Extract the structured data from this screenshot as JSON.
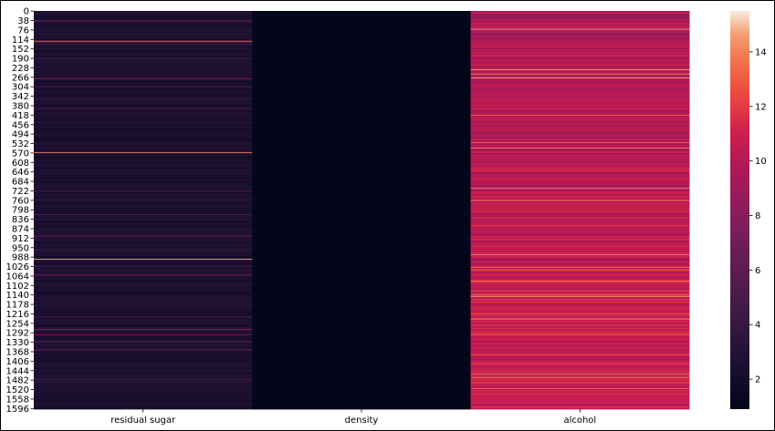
{
  "chart_data": {
    "type": "heatmap",
    "columns": [
      "residual sugar",
      "density",
      "alcohol"
    ],
    "y_tick_labels": [
      "0",
      "38",
      "76",
      "114",
      "152",
      "190",
      "228",
      "266",
      "304",
      "342",
      "380",
      "418",
      "456",
      "494",
      "532",
      "570",
      "608",
      "646",
      "684",
      "722",
      "760",
      "798",
      "836",
      "874",
      "912",
      "950",
      "988",
      "1026",
      "1064",
      "1102",
      "1140",
      "1178",
      "1216",
      "1254",
      "1292",
      "1330",
      "1368",
      "1406",
      "1444",
      "1482",
      "1520",
      "1558",
      "1596"
    ],
    "row_count": 1599,
    "colorbar": {
      "min": 0.9,
      "max": 15.5,
      "ticks": [
        "2",
        "4",
        "6",
        "8",
        "10",
        "12",
        "14"
      ]
    },
    "colormap": "rocket",
    "column_typical_values": {
      "residual sugar": 2.5,
      "density": 1.0,
      "alcohol": 10.4
    },
    "column_value_ranges": {
      "residual sugar": [
        0.9,
        15.5
      ],
      "density": [
        0.99,
        1.0
      ],
      "alcohol": [
        8.4,
        14.9
      ]
    }
  }
}
